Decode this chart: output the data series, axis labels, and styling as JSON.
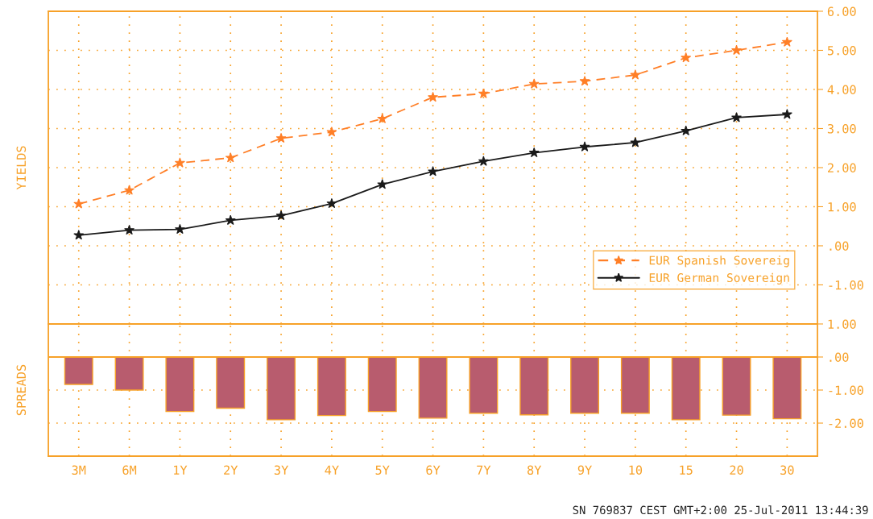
{
  "chart_data": [
    {
      "type": "line",
      "ylabel": "YIELDS",
      "categories": [
        null,
        null,
        null,
        null,
        null,
        null,
        null,
        null,
        null,
        null,
        null,
        null,
        null,
        null,
        null
      ],
      "series": [
        {
          "name": "EUR Spanish Sovereig",
          "color": "#ff7f27",
          "line_style": "dashed",
          "values": [
            1.07,
            1.42,
            2.12,
            2.25,
            2.75,
            2.91,
            3.25,
            3.8,
            3.89,
            4.14,
            4.21,
            4.37,
            4.81,
            5.0,
            5.21
          ]
        },
        {
          "name": "EUR German Sovereign",
          "color": "#1a1a1a",
          "line_style": "solid",
          "values": [
            0.27,
            0.4,
            0.42,
            0.65,
            0.77,
            1.08,
            1.57,
            1.9,
            2.16,
            2.38,
            2.53,
            2.64,
            2.94,
            3.28,
            3.36
          ]
        }
      ],
      "marker": "star",
      "ylim": [
        -2,
        6
      ],
      "yticks": [
        {
          "value": 6,
          "label": "6.00"
        },
        {
          "value": 5,
          "label": "5.00"
        },
        {
          "value": 4,
          "label": "4.00"
        },
        {
          "value": 3,
          "label": "3.00"
        },
        {
          "value": 2,
          "label": "2.00"
        },
        {
          "value": 1,
          "label": "1.00"
        },
        {
          "value": 0,
          "label": ".00"
        },
        {
          "value": -1,
          "label": "-1.00"
        }
      ],
      "tick_labels": "y",
      "grid": true,
      "legend": "bottom right"
    },
    {
      "type": "bar",
      "ylabel": "SPREADS",
      "categories": [
        "3M",
        "6M",
        "1Y",
        "2Y",
        "3Y",
        "4Y",
        "5Y",
        "6Y",
        "7Y",
        "8Y",
        "9Y",
        "10",
        "15",
        "20",
        "30"
      ],
      "values": [
        -0.83,
        -1.0,
        -1.65,
        -1.55,
        -1.9,
        -1.77,
        -1.65,
        -1.85,
        -1.7,
        -1.75,
        -1.7,
        -1.7,
        -1.9,
        -1.76,
        -1.87
      ],
      "color": "#b85c6e",
      "ylim": [
        -3,
        1
      ],
      "yticks": [
        {
          "value": 1,
          "label": "1.00"
        },
        {
          "value": 0,
          "label": ".00"
        },
        {
          "value": -1,
          "label": "-1.00"
        },
        {
          "value": -2,
          "label": "-2.00"
        }
      ],
      "ref_lines": [
        {
          "axis": "y",
          "value": 0,
          "color": "#f7a128"
        }
      ],
      "grid": true,
      "annotations": [
        "SN 769837 CEST GMT+2:00 25-Jul-2011 13:44:39"
      ]
    }
  ]
}
